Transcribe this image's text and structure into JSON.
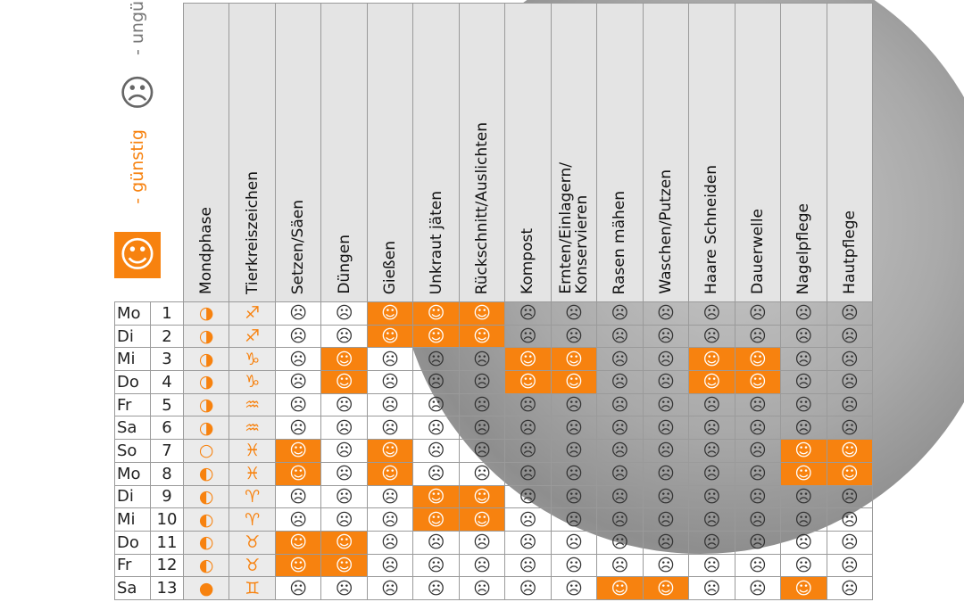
{
  "legend": {
    "good_symbol": "☺",
    "good_label": "- günstig",
    "bad_symbol": "☹",
    "bad_label": "- ungünstig"
  },
  "table": {
    "columns": [
      "Mondphase",
      "Tierkreiszeichen",
      "Setzen/Säen",
      "Düngen",
      "Gießen",
      "Unkraut jäten",
      "Rückschnitt/Auslichten",
      "Kompost",
      "Ernten/Einlagern/\nKonservieren",
      "Rasen mähen",
      "Waschen/Putzen",
      "Haare Schneiden",
      "Dauerwelle",
      "Nagelpflege",
      "Hautpflege"
    ],
    "rows": [
      {
        "day": "Mo",
        "date": 1,
        "moon": "◑",
        "zodiac": "♐",
        "cells": [
          "☹",
          "☹",
          "☺",
          "☺",
          "☺",
          "☹",
          "☹",
          "☹",
          "☹",
          "☹",
          "☹",
          "☹",
          "☹"
        ]
      },
      {
        "day": "Di",
        "date": 2,
        "moon": "◑",
        "zodiac": "♐",
        "cells": [
          "☹",
          "☹",
          "☺",
          "☺",
          "☺",
          "☹",
          "☹",
          "☹",
          "☹",
          "☹",
          "☹",
          "☹",
          "☹"
        ]
      },
      {
        "day": "Mi",
        "date": 3,
        "moon": "◑",
        "zodiac": "♑",
        "cells": [
          "☹",
          "☺",
          "☹",
          "☹",
          "☹",
          "☺",
          "☺",
          "☹",
          "☹",
          "☺",
          "☺",
          "☹",
          "☹"
        ]
      },
      {
        "day": "Do",
        "date": 4,
        "moon": "◑",
        "zodiac": "♑",
        "cells": [
          "☹",
          "☺",
          "☹",
          "☹",
          "☹",
          "☺",
          "☺",
          "☹",
          "☹",
          "☺",
          "☺",
          "☹",
          "☹"
        ]
      },
      {
        "day": "Fr",
        "date": 5,
        "moon": "◑",
        "zodiac": "♒",
        "cells": [
          "☹",
          "☹",
          "☹",
          "☹",
          "☹",
          "☹",
          "☹",
          "☹",
          "☹",
          "☹",
          "☹",
          "☹",
          "☹"
        ]
      },
      {
        "day": "Sa",
        "date": 6,
        "moon": "◑",
        "zodiac": "♒",
        "cells": [
          "☹",
          "☹",
          "☹",
          "☹",
          "☹",
          "☹",
          "☹",
          "☹",
          "☹",
          "☹",
          "☹",
          "☹",
          "☹"
        ]
      },
      {
        "day": "So",
        "date": 7,
        "moon": "○",
        "zodiac": "♓",
        "cells": [
          "☺",
          "☹",
          "☺",
          "☹",
          "☹",
          "☹",
          "☹",
          "☹",
          "☹",
          "☹",
          "☹",
          "☺",
          "☺"
        ]
      },
      {
        "day": "Mo",
        "date": 8,
        "moon": "◐",
        "zodiac": "♓",
        "cells": [
          "☺",
          "☹",
          "☺",
          "☹",
          "☹",
          "☹",
          "☹",
          "☹",
          "☹",
          "☹",
          "☹",
          "☺",
          "☺"
        ]
      },
      {
        "day": "Di",
        "date": 9,
        "moon": "◐",
        "zodiac": "♈",
        "cells": [
          "☹",
          "☹",
          "☹",
          "☺",
          "☺",
          "☹",
          "☹",
          "☹",
          "☹",
          "☹",
          "☹",
          "☹",
          "☹"
        ]
      },
      {
        "day": "Mi",
        "date": 10,
        "moon": "◐",
        "zodiac": "♈",
        "cells": [
          "☹",
          "☹",
          "☹",
          "☺",
          "☺",
          "☹",
          "☹",
          "☹",
          "☹",
          "☹",
          "☹",
          "☹",
          "☹"
        ]
      },
      {
        "day": "Do",
        "date": 11,
        "moon": "◐",
        "zodiac": "♉",
        "cells": [
          "☺",
          "☺",
          "☹",
          "☹",
          "☹",
          "☹",
          "☹",
          "☹",
          "☹",
          "☹",
          "☹",
          "☹",
          "☹"
        ]
      },
      {
        "day": "Fr",
        "date": 12,
        "moon": "◐",
        "zodiac": "♉",
        "cells": [
          "☺",
          "☺",
          "☹",
          "☹",
          "☹",
          "☹",
          "☹",
          "☹",
          "☹",
          "☹",
          "☹",
          "☹",
          "☹"
        ]
      },
      {
        "day": "Sa",
        "date": 13,
        "moon": "●",
        "zodiac": "♊",
        "cells": [
          "☹",
          "☹",
          "☹",
          "☹",
          "☹",
          "☹",
          "☹",
          "☺",
          "☺",
          "☹",
          "☹",
          "☺",
          "☹"
        ]
      }
    ]
  }
}
